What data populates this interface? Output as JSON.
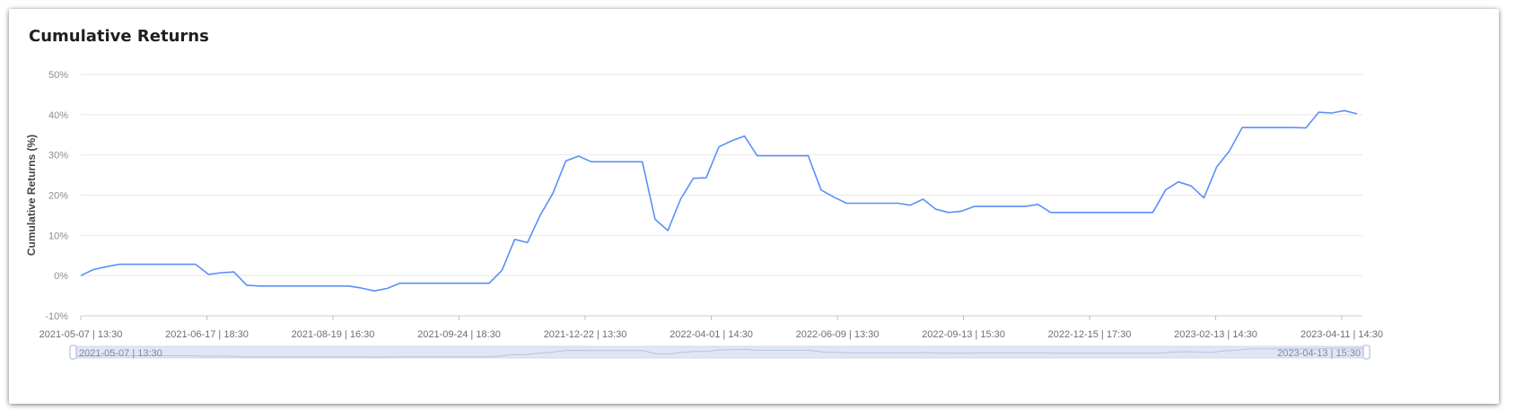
{
  "card": {
    "title": "Cumulative Returns"
  },
  "chart_data": {
    "type": "line",
    "title": "Cumulative Returns",
    "xlabel": "",
    "ylabel": "Cumulative Returns (%)",
    "ylim": [
      -10,
      50
    ],
    "yticks": [
      "-10%",
      "0%",
      "10%",
      "20%",
      "30%",
      "40%",
      "50%"
    ],
    "yticks_values": [
      -10,
      0,
      10,
      20,
      30,
      40,
      50
    ],
    "xticks": [
      "2021-05-07 | 13:30",
      "2021-06-17 | 18:30",
      "2021-08-19 | 16:30",
      "2021-09-24 | 18:30",
      "2021-12-22 | 13:30",
      "2022-04-01 | 14:30",
      "2022-06-09 | 13:30",
      "2022-09-13 | 15:30",
      "2022-12-15 | 17:30",
      "2023-02-13 | 14:30",
      "2023-04-11 | 14:30"
    ],
    "grid": true,
    "line_color": "#5b8ff9",
    "series": [
      {
        "values": [
          0,
          1.5,
          2.2,
          2.8,
          2.8,
          2.8,
          2.8,
          2.8,
          2.8,
          2.8,
          0.3,
          0.7,
          0.9,
          -2.4,
          -2.6,
          -2.6,
          -2.6,
          -2.6,
          -2.6,
          -2.6,
          -2.6,
          -2.6,
          -3.1,
          -3.8,
          -3.2,
          -1.9,
          -1.9,
          -1.9,
          -1.9,
          -1.9,
          -1.9,
          -1.9,
          -1.9,
          1.3,
          9.0,
          8.2,
          15.0,
          20.5,
          28.5,
          29.7,
          28.3,
          28.3,
          28.3,
          28.3,
          28.3,
          14.0,
          11.2,
          19.0,
          24.2,
          24.3,
          32.0,
          33.5,
          34.7,
          29.8,
          29.8,
          29.8,
          29.8,
          29.8,
          21.3,
          19.5,
          18.0,
          18.0,
          18.0,
          18.0,
          18.0,
          17.5,
          19.0,
          16.5,
          15.7,
          16.0,
          17.2,
          17.2,
          17.2,
          17.2,
          17.2,
          17.7,
          15.7,
          15.7,
          15.7,
          15.7,
          15.7,
          15.7,
          15.7,
          15.7,
          15.7,
          21.3,
          23.3,
          22.3,
          19.3,
          27.0,
          31.0,
          36.8,
          36.8,
          36.8,
          36.8,
          36.8,
          36.7,
          40.6,
          40.4,
          41.0,
          40.2
        ]
      }
    ]
  },
  "zoom": {
    "start_label": "2021-05-07 | 13:30",
    "end_label": "2023-04-13 | 15:30"
  }
}
